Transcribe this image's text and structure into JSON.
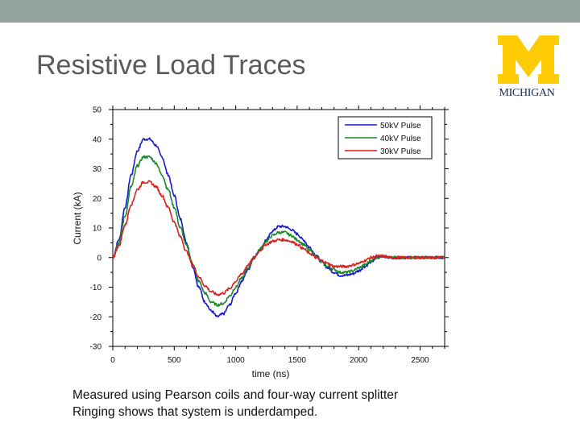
{
  "slide": {
    "title": "Resistive Load Traces",
    "logo_text": "MICHIGAN",
    "caption_lines": [
      "Measured using Pearson coils and four-way current splitter",
      "Ringing shows that system is underdamped."
    ],
    "colors": {
      "top_bar": "#94a39b",
      "logo_maize": "#FFCB05",
      "logo_blue": "#1a2a55"
    }
  },
  "chart_data": {
    "type": "line",
    "title": "",
    "xlabel": "time (ns)",
    "ylabel": "Current (kA)",
    "xlim": [
      0,
      2700
    ],
    "ylim": [
      -30,
      50
    ],
    "xticks": [
      0,
      500,
      1000,
      1500,
      2000,
      2500
    ],
    "xtick_labels": [
      "0",
      "500",
      "1000",
      "1500",
      "2000",
      "2500"
    ],
    "yticks": [
      -30,
      -20,
      -10,
      0,
      10,
      20,
      30,
      40,
      50
    ],
    "ytick_labels": [
      "-30",
      "-20",
      "-10",
      "0",
      "10",
      "20",
      "30",
      "40",
      "50"
    ],
    "grid": false,
    "legend_position": "top-right",
    "x": [
      0,
      50,
      100,
      150,
      200,
      250,
      300,
      350,
      400,
      450,
      500,
      550,
      600,
      650,
      700,
      750,
      800,
      850,
      900,
      950,
      1000,
      1050,
      1100,
      1150,
      1200,
      1250,
      1300,
      1350,
      1400,
      1450,
      1500,
      1550,
      1600,
      1650,
      1700,
      1750,
      1800,
      1850,
      1900,
      1950,
      2000,
      2050,
      2100,
      2150,
      2200,
      2250,
      2300,
      2350,
      2400,
      2450,
      2500,
      2550,
      2600,
      2650,
      2700
    ],
    "series": [
      {
        "name": "50kV Pulse",
        "color": "#1a1acc",
        "values": [
          0,
          6,
          17,
          28,
          36,
          40,
          40,
          38,
          34,
          28,
          21,
          13,
          5,
          -3,
          -10,
          -15,
          -18,
          -20,
          -19,
          -16,
          -12,
          -8,
          -4,
          0,
          3,
          6,
          9,
          10.5,
          10.5,
          9.5,
          8,
          6,
          3.5,
          1,
          -1.5,
          -3.5,
          -5,
          -6,
          -6,
          -5.5,
          -4.5,
          -3,
          -1.5,
          0,
          0.5,
          0,
          0,
          0,
          0,
          0,
          0,
          0,
          0,
          0,
          0
        ]
      },
      {
        "name": "40kV Pulse",
        "color": "#1a8a2a",
        "values": [
          0,
          5,
          14,
          24,
          31,
          34,
          34,
          32,
          28,
          23,
          17,
          10,
          4,
          -2,
          -8,
          -12,
          -15,
          -16,
          -15.5,
          -13,
          -10,
          -7,
          -3.5,
          0,
          3,
          5.5,
          7.5,
          8.5,
          8.5,
          7.5,
          6,
          4.5,
          2.5,
          0.5,
          -1.5,
          -3,
          -4,
          -5,
          -5,
          -4.5,
          -3.5,
          -2.5,
          -1,
          0,
          0.5,
          0,
          0,
          0,
          0,
          0,
          0,
          0,
          0,
          0,
          0
        ]
      },
      {
        "name": "30kV Pulse",
        "color": "#dd1f1f",
        "values": [
          0,
          4,
          11,
          18,
          23,
          25.5,
          25.5,
          24,
          21,
          17,
          12,
          7,
          2,
          -2.5,
          -6.5,
          -9.5,
          -11.5,
          -12.5,
          -12,
          -10.5,
          -8,
          -5.5,
          -2.5,
          0,
          2.5,
          4.5,
          5.5,
          6,
          6,
          5.5,
          4.5,
          3,
          1.5,
          0,
          -1,
          -2,
          -3,
          -3,
          -3,
          -2.5,
          -2,
          -1,
          0,
          0.5,
          0.5,
          0,
          0,
          0,
          0,
          0,
          0,
          0,
          0,
          0,
          0
        ]
      }
    ]
  }
}
